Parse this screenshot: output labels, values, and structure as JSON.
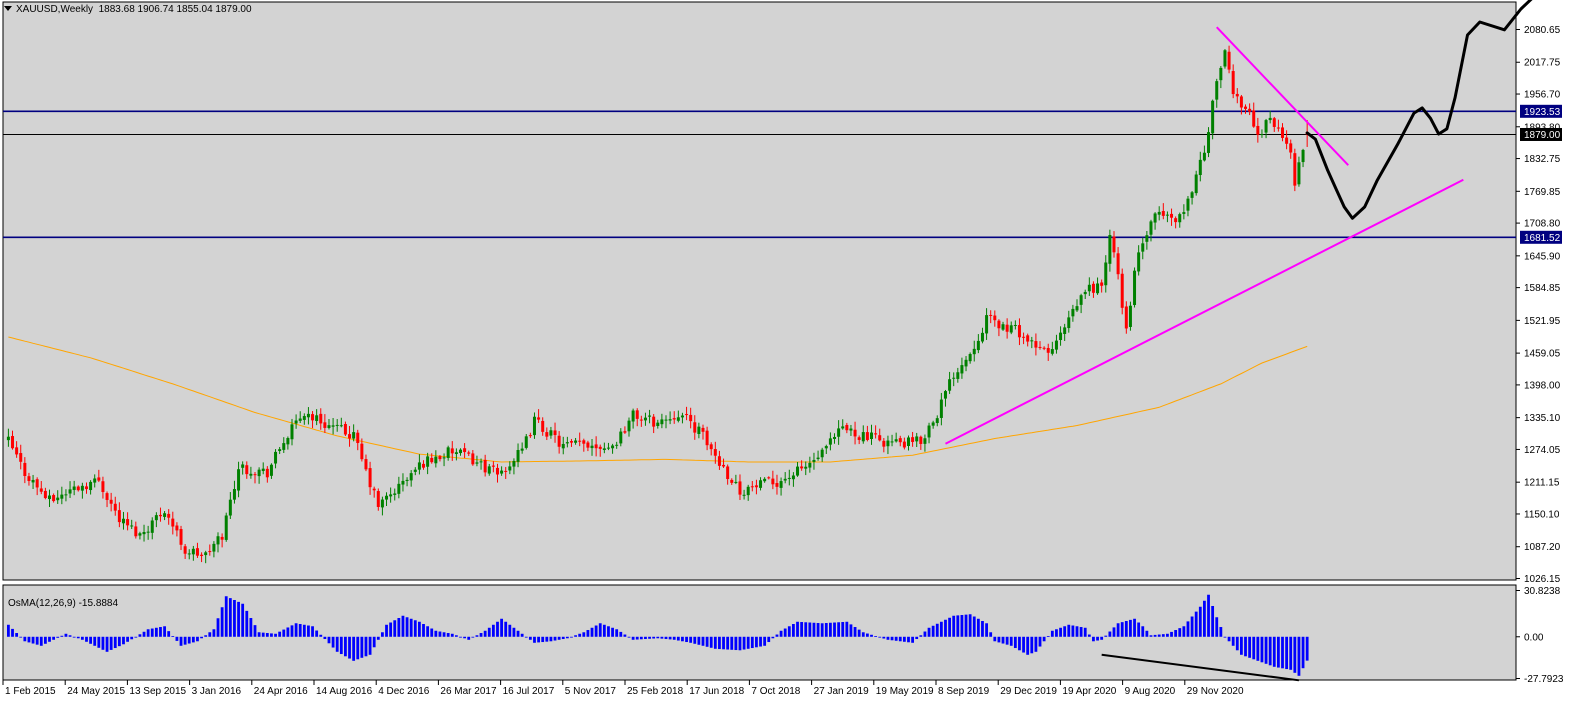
{
  "header": {
    "symbol": "XAUUSD,Weekly",
    "ohlc": "1883.68 1906.74 1855.04 1879.00"
  },
  "oscillator": {
    "label": "OsMA(12,26,9) -15.8884",
    "ticks": [
      "30.8238",
      "0.00",
      "-27.7923"
    ],
    "range": [
      -27.7923,
      30.8238
    ]
  },
  "chart_data": [
    {
      "type": "candlestick",
      "title": "XAUUSD,Weekly",
      "ohlc_last": {
        "open": 1883.68,
        "high": 1906.74,
        "low": 1855.04,
        "close": 1879.0
      },
      "x_tick_labels": [
        "1 Feb 2015",
        "24 May 2015",
        "13 Sep 2015",
        "3 Jan 2016",
        "24 Apr 2016",
        "14 Aug 2016",
        "4 Dec 2016",
        "26 Mar 2017",
        "16 Jul 2017",
        "5 Nov 2017",
        "25 Feb 2018",
        "17 Jun 2018",
        "7 Oct 2018",
        "27 Jan 2019",
        "19 May 2019",
        "8 Sep 2019",
        "29 Dec 2019",
        "19 Apr 2020",
        "9 Aug 2020",
        "29 Nov 2020"
      ],
      "y_tick_labels": [
        "2080.65",
        "2017.75",
        "1956.70",
        "1893.80",
        "1832.75",
        "1769.85",
        "1708.80",
        "1645.90",
        "1584.85",
        "1521.95",
        "1459.05",
        "1398.00",
        "1335.10",
        "1274.05",
        "1211.15",
        "1150.10",
        "1087.20",
        "1026.15"
      ],
      "ylim": [
        1026.15,
        2080.65
      ],
      "price_labels": {
        "resistance": "1923.53",
        "current": "1879.00",
        "support": "1681.52"
      },
      "horizontal_levels": [
        {
          "value": 1923.53,
          "color": "#000080"
        },
        {
          "value": 1681.52,
          "color": "#000080"
        },
        {
          "value": 1879.0,
          "color": "#000000"
        }
      ],
      "anchors": [
        {
          "week": 0,
          "price": 1290
        },
        {
          "week": 4,
          "price": 1230
        },
        {
          "week": 10,
          "price": 1175
        },
        {
          "week": 16,
          "price": 1200
        },
        {
          "week": 22,
          "price": 1215
        },
        {
          "week": 27,
          "price": 1140
        },
        {
          "week": 32,
          "price": 1110
        },
        {
          "week": 38,
          "price": 1160
        },
        {
          "week": 43,
          "price": 1080
        },
        {
          "week": 48,
          "price": 1070
        },
        {
          "week": 52,
          "price": 1110
        },
        {
          "week": 56,
          "price": 1240
        },
        {
          "week": 63,
          "price": 1230
        },
        {
          "week": 67,
          "price": 1290
        },
        {
          "week": 72,
          "price": 1345
        },
        {
          "week": 78,
          "price": 1320
        },
        {
          "week": 84,
          "price": 1300
        },
        {
          "week": 87,
          "price": 1230
        },
        {
          "week": 90,
          "price": 1165
        },
        {
          "week": 96,
          "price": 1210
        },
        {
          "week": 101,
          "price": 1250
        },
        {
          "week": 108,
          "price": 1270
        },
        {
          "week": 113,
          "price": 1255
        },
        {
          "week": 119,
          "price": 1225
        },
        {
          "week": 125,
          "price": 1270
        },
        {
          "week": 128,
          "price": 1330
        },
        {
          "week": 135,
          "price": 1280
        },
        {
          "week": 141,
          "price": 1285
        },
        {
          "week": 147,
          "price": 1280
        },
        {
          "week": 152,
          "price": 1340
        },
        {
          "week": 158,
          "price": 1325
        },
        {
          "week": 163,
          "price": 1345
        },
        {
          "week": 168,
          "price": 1310
        },
        {
          "week": 173,
          "price": 1250
        },
        {
          "week": 178,
          "price": 1195
        },
        {
          "week": 183,
          "price": 1205
        },
        {
          "week": 188,
          "price": 1215
        },
        {
          "week": 193,
          "price": 1235
        },
        {
          "week": 198,
          "price": 1265
        },
        {
          "week": 203,
          "price": 1315
        },
        {
          "week": 208,
          "price": 1300
        },
        {
          "week": 213,
          "price": 1290
        },
        {
          "week": 218,
          "price": 1285
        },
        {
          "week": 222,
          "price": 1290
        },
        {
          "week": 226,
          "price": 1345
        },
        {
          "week": 230,
          "price": 1420
        },
        {
          "week": 234,
          "price": 1460
        },
        {
          "week": 238,
          "price": 1525
        },
        {
          "week": 242,
          "price": 1510
        },
        {
          "week": 246,
          "price": 1500
        },
        {
          "week": 250,
          "price": 1465
        },
        {
          "week": 254,
          "price": 1465
        },
        {
          "week": 258,
          "price": 1520
        },
        {
          "week": 262,
          "price": 1580
        },
        {
          "week": 266,
          "price": 1590
        },
        {
          "week": 268,
          "price": 1680
        },
        {
          "week": 270,
          "price": 1610
        },
        {
          "week": 272,
          "price": 1500
        },
        {
          "week": 274,
          "price": 1620
        },
        {
          "week": 277,
          "price": 1690
        },
        {
          "week": 280,
          "price": 1730
        },
        {
          "week": 283,
          "price": 1715
        },
        {
          "week": 286,
          "price": 1730
        },
        {
          "week": 289,
          "price": 1800
        },
        {
          "week": 292,
          "price": 1880
        },
        {
          "week": 294,
          "price": 1990
        },
        {
          "week": 296,
          "price": 2030
        },
        {
          "week": 298,
          "price": 1960
        },
        {
          "week": 300,
          "price": 1940
        },
        {
          "week": 302,
          "price": 1925
        },
        {
          "week": 304,
          "price": 1870
        },
        {
          "week": 306,
          "price": 1910
        },
        {
          "week": 308,
          "price": 1900
        },
        {
          "week": 310,
          "price": 1870
        },
        {
          "week": 312,
          "price": 1850
        },
        {
          "week": 313,
          "price": 1790
        },
        {
          "week": 315,
          "price": 1850
        },
        {
          "week": 316,
          "price": 1879
        }
      ],
      "moving_average": {
        "color": "#FFA500",
        "points": [
          {
            "week": 0,
            "price": 1490
          },
          {
            "week": 20,
            "price": 1450
          },
          {
            "week": 40,
            "price": 1400
          },
          {
            "week": 60,
            "price": 1345
          },
          {
            "week": 80,
            "price": 1300
          },
          {
            "week": 100,
            "price": 1265
          },
          {
            "week": 120,
            "price": 1250
          },
          {
            "week": 140,
            "price": 1252
          },
          {
            "week": 160,
            "price": 1255
          },
          {
            "week": 180,
            "price": 1250
          },
          {
            "week": 200,
            "price": 1250
          },
          {
            "week": 220,
            "price": 1263
          },
          {
            "week": 240,
            "price": 1295
          },
          {
            "week": 260,
            "price": 1320
          },
          {
            "week": 280,
            "price": 1355
          },
          {
            "week": 295,
            "price": 1400
          },
          {
            "week": 305,
            "price": 1440
          },
          {
            "week": 316,
            "price": 1472
          }
        ]
      },
      "trendlines": [
        {
          "name": "rising-support",
          "color": "#FF00FF",
          "points": [
            {
              "week": 228,
              "price": 1285
            },
            {
              "week": 354,
              "price": 1792
            }
          ]
        },
        {
          "name": "falling-resistance",
          "color": "#FF00FF",
          "points": [
            {
              "week": 294,
              "price": 2085
            },
            {
              "week": 326,
              "price": 1820
            }
          ]
        }
      ],
      "projection_path": [
        {
          "week": 316,
          "price": 1882
        },
        {
          "week": 318,
          "price": 1870
        },
        {
          "week": 321,
          "price": 1810
        },
        {
          "week": 323,
          "price": 1775
        },
        {
          "week": 325,
          "price": 1740
        },
        {
          "week": 327,
          "price": 1718
        },
        {
          "week": 330,
          "price": 1740
        },
        {
          "week": 333,
          "price": 1790
        },
        {
          "week": 338,
          "price": 1860
        },
        {
          "week": 342,
          "price": 1920
        },
        {
          "week": 344,
          "price": 1930
        },
        {
          "week": 346,
          "price": 1910
        },
        {
          "week": 348,
          "price": 1880
        },
        {
          "week": 350,
          "price": 1890
        },
        {
          "week": 352,
          "price": 1950
        },
        {
          "week": 355,
          "price": 2070
        },
        {
          "week": 358,
          "price": 2095
        },
        {
          "week": 364,
          "price": 2080
        },
        {
          "week": 368,
          "price": 2120
        },
        {
          "week": 374,
          "price": 2165
        }
      ]
    },
    {
      "type": "bar",
      "title": "OsMA(12,26,9) -15.8884",
      "ylim": [
        -27.7923,
        30.8238
      ],
      "anchors": [
        {
          "week": 0,
          "value": 8
        },
        {
          "week": 4,
          "value": -3
        },
        {
          "week": 8,
          "value": -6
        },
        {
          "week": 14,
          "value": 2
        },
        {
          "week": 18,
          "value": -2
        },
        {
          "week": 24,
          "value": -10
        },
        {
          "week": 28,
          "value": -5
        },
        {
          "week": 34,
          "value": 5
        },
        {
          "week": 38,
          "value": 7
        },
        {
          "week": 42,
          "value": -6
        },
        {
          "week": 46,
          "value": -3
        },
        {
          "week": 50,
          "value": 5
        },
        {
          "week": 53,
          "value": 27
        },
        {
          "week": 57,
          "value": 22
        },
        {
          "week": 61,
          "value": 3
        },
        {
          "week": 65,
          "value": 2
        },
        {
          "week": 70,
          "value": 9
        },
        {
          "week": 74,
          "value": 7
        },
        {
          "week": 80,
          "value": -10
        },
        {
          "week": 84,
          "value": -16
        },
        {
          "week": 88,
          "value": -12
        },
        {
          "week": 92,
          "value": 8
        },
        {
          "week": 96,
          "value": 14
        },
        {
          "week": 100,
          "value": 10
        },
        {
          "week": 104,
          "value": 4
        },
        {
          "week": 108,
          "value": 2
        },
        {
          "week": 112,
          "value": -2
        },
        {
          "week": 116,
          "value": 4
        },
        {
          "week": 120,
          "value": 12
        },
        {
          "week": 124,
          "value": 4
        },
        {
          "week": 128,
          "value": -4
        },
        {
          "week": 132,
          "value": -3
        },
        {
          "week": 136,
          "value": -1
        },
        {
          "week": 140,
          "value": 3
        },
        {
          "week": 144,
          "value": 9
        },
        {
          "week": 148,
          "value": 5
        },
        {
          "week": 152,
          "value": -2
        },
        {
          "week": 158,
          "value": -1
        },
        {
          "week": 162,
          "value": -2
        },
        {
          "week": 166,
          "value": -4
        },
        {
          "week": 172,
          "value": -8
        },
        {
          "week": 178,
          "value": -9
        },
        {
          "week": 184,
          "value": -6
        },
        {
          "week": 188,
          "value": 4
        },
        {
          "week": 192,
          "value": 10
        },
        {
          "week": 198,
          "value": 9
        },
        {
          "week": 204,
          "value": 10
        },
        {
          "week": 208,
          "value": 3
        },
        {
          "week": 214,
          "value": -2
        },
        {
          "week": 220,
          "value": -4
        },
        {
          "week": 224,
          "value": 6
        },
        {
          "week": 230,
          "value": 14
        },
        {
          "week": 234,
          "value": 15
        },
        {
          "week": 238,
          "value": 9
        },
        {
          "week": 240,
          "value": -3
        },
        {
          "week": 244,
          "value": -6
        },
        {
          "week": 248,
          "value": -12
        },
        {
          "week": 250,
          "value": -10
        },
        {
          "week": 254,
          "value": 4
        },
        {
          "week": 258,
          "value": 8
        },
        {
          "week": 262,
          "value": 6
        },
        {
          "week": 264,
          "value": -3
        },
        {
          "week": 266,
          "value": -2
        },
        {
          "week": 270,
          "value": 9
        },
        {
          "week": 274,
          "value": 12
        },
        {
          "week": 276,
          "value": 7
        },
        {
          "week": 278,
          "value": 1
        },
        {
          "week": 282,
          "value": 2
        },
        {
          "week": 286,
          "value": 7
        },
        {
          "week": 290,
          "value": 20
        },
        {
          "week": 292,
          "value": 28
        },
        {
          "week": 294,
          "value": 13
        },
        {
          "week": 296,
          "value": 0
        },
        {
          "week": 300,
          "value": -12
        },
        {
          "week": 304,
          "value": -16
        },
        {
          "week": 308,
          "value": -20
        },
        {
          "week": 312,
          "value": -22
        },
        {
          "week": 314,
          "value": -26
        },
        {
          "week": 316,
          "value": -15.8884
        }
      ],
      "divergence_line": {
        "color": "#000000",
        "points": [
          {
            "week": 266,
            "value": -12
          },
          {
            "week": 314,
            "value": -29
          }
        ]
      }
    }
  ]
}
